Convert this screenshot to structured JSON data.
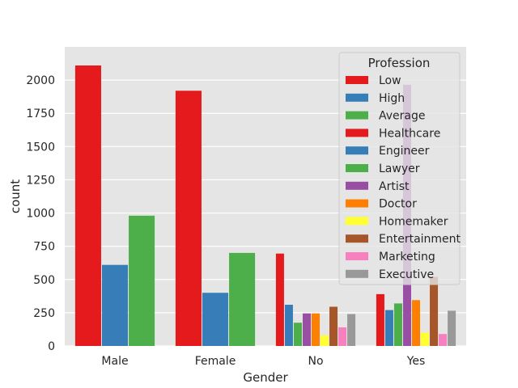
{
  "chart_data": {
    "type": "bar",
    "categories": [
      "Male",
      "Female",
      "No",
      "Yes"
    ],
    "xlabel": "Gender",
    "ylabel": "count",
    "ylim": [
      0,
      2250
    ],
    "yticks": [
      0,
      250,
      500,
      750,
      1000,
      1250,
      1500,
      1750,
      2000
    ],
    "grid": true,
    "legend": {
      "title": "Profession",
      "placement": "top-right"
    },
    "series": [
      {
        "name": "Low",
        "color": "#e41a1c",
        "values": [
          2110,
          1920,
          null,
          null
        ]
      },
      {
        "name": "High",
        "color": "#377eb8",
        "values": [
          610,
          400,
          null,
          null
        ]
      },
      {
        "name": "Average",
        "color": "#4daf4a",
        "values": [
          980,
          700,
          null,
          null
        ]
      },
      {
        "name": "Healthcare",
        "color": "#e41a1c",
        "values": [
          null,
          null,
          695,
          390
        ]
      },
      {
        "name": "Engineer",
        "color": "#377eb8",
        "values": [
          null,
          null,
          310,
          270
        ]
      },
      {
        "name": "Lawyer",
        "color": "#4daf4a",
        "values": [
          null,
          null,
          175,
          320
        ]
      },
      {
        "name": "Artist",
        "color": "#984ea3",
        "values": [
          null,
          null,
          245,
          1965
        ]
      },
      {
        "name": "Doctor",
        "color": "#ff7f00",
        "values": [
          null,
          null,
          245,
          345
        ]
      },
      {
        "name": "Homemaker",
        "color": "#ffff33",
        "values": [
          null,
          null,
          80,
          100
        ]
      },
      {
        "name": "Entertainment",
        "color": "#a65628",
        "values": [
          null,
          null,
          295,
          520
        ]
      },
      {
        "name": "Marketing",
        "color": "#f781bf",
        "values": [
          null,
          null,
          140,
          90
        ]
      },
      {
        "name": "Executive",
        "color": "#999999",
        "values": [
          null,
          null,
          240,
          265
        ]
      }
    ]
  }
}
